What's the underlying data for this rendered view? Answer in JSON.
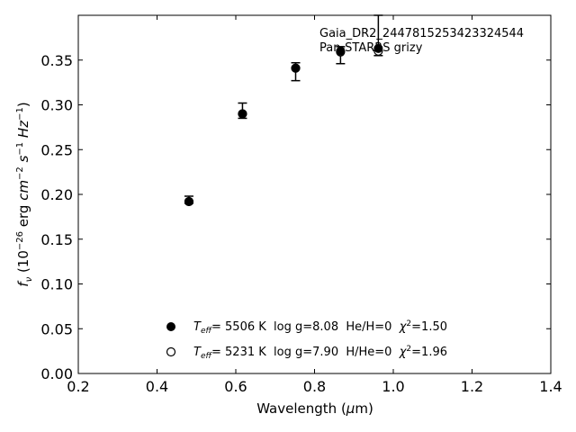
{
  "chart_data": {
    "type": "scatter",
    "title": "",
    "xlabel": "Wavelength (μm)",
    "ylabel": "f_ν (10^-26 erg cm^-2 s^-1 Hz^-1)",
    "xlim": [
      0.2,
      1.4
    ],
    "ylim": [
      0.0,
      0.4
    ],
    "xticks": [
      0.2,
      0.4,
      0.6,
      0.8,
      1.0,
      1.2,
      1.4
    ],
    "yticks": [
      0.0,
      0.05,
      0.1,
      0.15,
      0.2,
      0.25,
      0.3,
      0.35
    ],
    "xtick_labels": [
      "0.2",
      "0.4",
      "0.6",
      "0.8",
      "1.0",
      "1.2",
      "1.4"
    ],
    "ytick_labels": [
      "0.00",
      "0.05",
      "0.10",
      "0.15",
      "0.20",
      "0.25",
      "0.30",
      "0.35"
    ],
    "grid": false,
    "annotations": [
      "Gaia_DR2_2447815253423324544",
      "Pan-STARRS grizy"
    ],
    "observed": {
      "x": [
        0.481,
        0.617,
        0.752,
        0.866,
        0.962
      ],
      "y": [
        0.193,
        0.291,
        0.343,
        0.359,
        0.362
      ],
      "err_lo": [
        0.19,
        0.285,
        0.327,
        0.346,
        0.355
      ],
      "err_hi": [
        0.198,
        0.302,
        0.347,
        0.365,
        0.4
      ]
    },
    "series": [
      {
        "marker": "filled",
        "x": [
          0.481,
          0.617,
          0.752,
          0.866,
          0.962
        ],
        "y": [
          0.192,
          0.29,
          0.341,
          0.36,
          0.363
        ],
        "label": "Teff= 5506 K log g=8.08 He/H=0 χ²=1.50"
      },
      {
        "marker": "open",
        "x": [
          0.481,
          0.617,
          0.752,
          0.866,
          0.962
        ],
        "y": [
          0.192,
          0.29,
          0.341,
          0.359,
          0.36
        ],
        "label": "Teff= 5231 K log g=7.90 H/He=0 χ²=1.96"
      }
    ],
    "legend_placement": "lower-center"
  },
  "legend": [
    {
      "teff": "5506 K",
      "rest": "  log g=8.08  He/H=0  ",
      "chi": "=1.50"
    },
    {
      "teff": "5231 K",
      "rest": "  log g=7.90  H/He=0  ",
      "chi": "=1.96"
    }
  ]
}
